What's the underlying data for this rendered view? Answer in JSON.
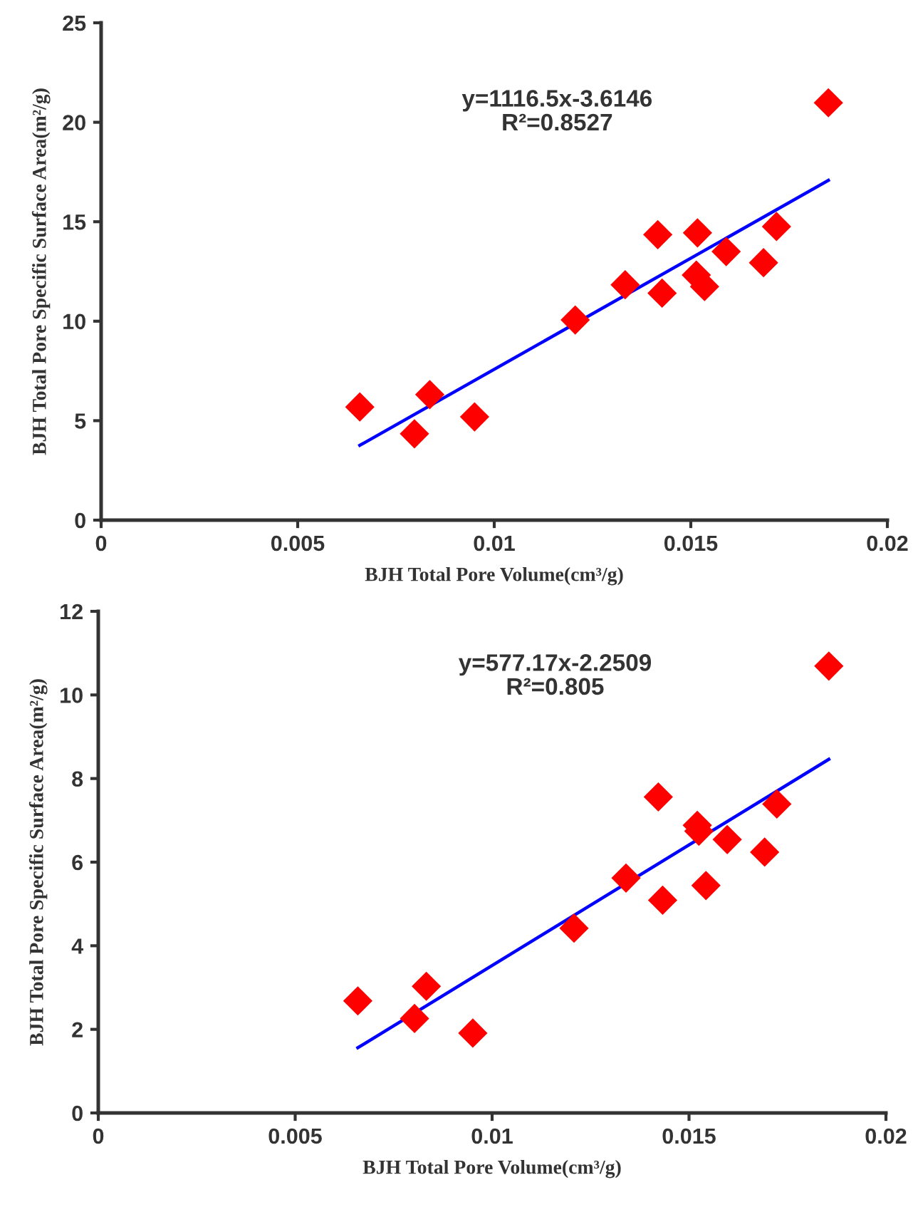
{
  "chart_data": [
    {
      "type": "scatter",
      "xlabel": "BJH Total Pore Volume(cm³/g)",
      "ylabel": "BJH Total Pore Specific Surface Area(m²/g)",
      "annotations": [
        "y=1116.5x-3.6146\nR²=0.8527"
      ],
      "xlim": [
        0,
        0.02
      ],
      "ylim": [
        0,
        25
      ],
      "xticks": [
        0,
        0.005,
        0.01,
        0.015,
        0.02
      ],
      "yticks": [
        0,
        5,
        10,
        15,
        20,
        25
      ],
      "grid": false,
      "legend": false,
      "marker": "diamond",
      "series": [
        {
          "color": "#ff0000",
          "x": [
            0.00658,
            0.00797,
            0.00836,
            0.0095,
            0.01206,
            0.01333,
            0.01416,
            0.01427,
            0.01517,
            0.01514,
            0.01535,
            0.0159,
            0.01685,
            0.01718,
            0.0185
          ],
          "values": [
            5.69,
            4.34,
            6.31,
            5.19,
            10.06,
            11.83,
            14.35,
            11.41,
            14.44,
            12.32,
            11.74,
            13.5,
            12.94,
            14.76,
            20.98
          ]
        },
        {
          "type": "line",
          "color": "#0000ff",
          "marker": "none",
          "line_style": "solid",
          "x": [
            0.00658,
            0.0185
          ],
          "values": [
            3.76,
            17.08
          ]
        }
      ]
    },
    {
      "type": "scatter",
      "xlabel": "BJH Total Pore Volume(cm³/g)",
      "ylabel": "BJH Total Pore Specific Surface Area(m²/g)",
      "annotations": [
        "y=577.17x-2.2509\nR²=0.805"
      ],
      "xlim": [
        0,
        0.02
      ],
      "ylim": [
        0,
        12
      ],
      "xticks": [
        0,
        0.005,
        0.01,
        0.015,
        0.02
      ],
      "yticks": [
        0,
        2,
        4,
        6,
        8,
        10,
        12
      ],
      "grid": false,
      "legend": false,
      "marker": "diamond",
      "series": [
        {
          "color": "#ff0000",
          "x": [
            0.00659,
            0.00803,
            0.00833,
            0.00951,
            0.01208,
            0.0134,
            0.01422,
            0.01433,
            0.01521,
            0.01525,
            0.01543,
            0.01597,
            0.01692,
            0.01723,
            0.01855
          ],
          "values": [
            2.68,
            2.26,
            3.03,
            1.91,
            4.42,
            5.62,
            7.56,
            5.09,
            6.88,
            6.74,
            5.44,
            6.54,
            6.24,
            7.39,
            10.69
          ]
        },
        {
          "type": "line",
          "color": "#0000ff",
          "marker": "none",
          "line_style": "solid",
          "x": [
            0.00659,
            0.01855
          ],
          "values": [
            1.56,
            8.46
          ]
        }
      ]
    }
  ]
}
